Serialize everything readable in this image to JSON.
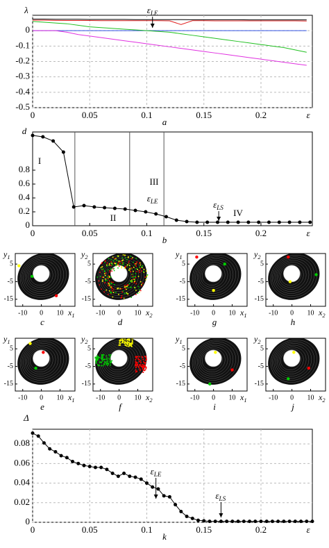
{
  "chart_data": [
    {
      "type": "line",
      "letter": "a",
      "ylabel": "λ",
      "xlabel": "ε",
      "x": [
        0,
        0.01,
        0.02,
        0.03,
        0.04,
        0.05,
        0.06,
        0.07,
        0.08,
        0.09,
        0.1,
        0.11,
        0.12,
        0.13,
        0.14,
        0.15,
        0.16,
        0.17,
        0.18,
        0.19,
        0.2,
        0.21,
        0.22,
        0.23,
        0.24
      ],
      "series": [
        {
          "color": "#000000",
          "values": [
            0.075,
            0.075,
            0.074,
            0.074,
            0.074,
            0.073,
            0.073,
            0.073,
            0.073,
            0.072,
            0.072,
            0.072,
            0.072,
            0.072,
            0.071,
            0.071,
            0.071,
            0.071,
            0.071,
            0.07,
            0.07,
            0.07,
            0.07,
            0.07,
            0.07
          ]
        },
        {
          "color": "#e02020",
          "values": [
            0.068,
            0.068,
            0.067,
            0.066,
            0.066,
            0.066,
            0.065,
            0.065,
            0.065,
            0.065,
            0.065,
            0.065,
            0.064,
            0.04,
            0.065,
            0.065,
            0.064,
            0.064,
            0.064,
            0.064,
            0.064,
            0.064,
            0.064,
            0.064,
            0.063
          ]
        },
        {
          "color": "#3050e0",
          "values": [
            0,
            0,
            0,
            0,
            0,
            0,
            0,
            0,
            0,
            0,
            0,
            0,
            0,
            0,
            0,
            0,
            0,
            0,
            0,
            0,
            0,
            0,
            0,
            0,
            0
          ]
        },
        {
          "color": "#20c020",
          "values": [
            0.06,
            0.055,
            0.05,
            0.045,
            0.035,
            0.025,
            0.02,
            0.015,
            0.01,
            0.005,
            0,
            -0.005,
            -0.01,
            -0.02,
            -0.03,
            -0.04,
            -0.05,
            -0.06,
            -0.07,
            -0.08,
            -0.09,
            -0.1,
            -0.11,
            -0.125,
            -0.14
          ]
        },
        {
          "color": "#e030e0",
          "values": [
            0,
            0,
            0,
            -0.01,
            -0.025,
            -0.035,
            -0.045,
            -0.055,
            -0.065,
            -0.075,
            -0.085,
            -0.095,
            -0.105,
            -0.115,
            -0.125,
            -0.135,
            -0.145,
            -0.155,
            -0.165,
            -0.175,
            -0.185,
            -0.195,
            -0.205,
            -0.215,
            -0.225
          ]
        }
      ],
      "xlim": [
        0,
        0.245
      ],
      "ylim": [
        -0.5,
        0.1
      ],
      "xticks": [
        0,
        0.05,
        0.1,
        0.15,
        0.2
      ],
      "yticks": [
        0,
        -0.1,
        -0.2,
        -0.3,
        -0.4,
        -0.5
      ],
      "grid": true,
      "markers": [
        {
          "label": {
            "base": "ε",
            "sub": "LE"
          },
          "x": 0.105
        }
      ]
    },
    {
      "type": "line",
      "letter": "b",
      "ylabel": "d",
      "xlabel": "ε",
      "point_markers": true,
      "color": "#000000",
      "x": [
        0,
        0.009,
        0.018,
        0.027,
        0.036,
        0.045,
        0.054,
        0.063,
        0.072,
        0.081,
        0.09,
        0.099,
        0.108,
        0.117,
        0.126,
        0.135,
        0.144,
        0.153,
        0.162,
        0.171,
        0.18,
        0.189,
        0.198,
        0.207,
        0.216,
        0.225,
        0.234,
        0.243
      ],
      "series": [
        {
          "color": "#000000",
          "values": [
            1.3,
            1.28,
            1.22,
            1.06,
            0.27,
            0.29,
            0.27,
            0.26,
            0.25,
            0.24,
            0.22,
            0.2,
            0.17,
            0.13,
            0.08,
            0.06,
            0.05,
            0.05,
            0.05,
            0.05,
            0.05,
            0.05,
            0.05,
            0.05,
            0.05,
            0.05,
            0.05,
            0.05
          ]
        }
      ],
      "xlim": [
        0,
        0.245
      ],
      "ylim": [
        0,
        1.35
      ],
      "xticks": [
        0,
        0.05,
        0.1,
        0.15,
        0.2
      ],
      "yticks": [
        0,
        0.2,
        0.4,
        0.6,
        0.8
      ],
      "grid": false,
      "vlines": [
        0.037,
        0.085,
        0.115
      ],
      "region_labels": [
        "I",
        "II",
        "III",
        "IV"
      ],
      "markers": [
        {
          "label": {
            "base": "ε",
            "sub": "LE"
          },
          "x": 0.105
        },
        {
          "label": {
            "base": "ε",
            "sub": "LS"
          },
          "x": 0.163
        }
      ]
    },
    {
      "type": "line",
      "letter": "k",
      "ylabel": "Δ",
      "xlabel": "ε",
      "point_markers": true,
      "x": [
        0,
        0.005,
        0.01,
        0.015,
        0.02,
        0.025,
        0.03,
        0.035,
        0.04,
        0.045,
        0.05,
        0.055,
        0.06,
        0.065,
        0.07,
        0.075,
        0.08,
        0.085,
        0.09,
        0.095,
        0.1,
        0.105,
        0.11,
        0.115,
        0.12,
        0.125,
        0.13,
        0.135,
        0.14,
        0.145,
        0.15,
        0.155,
        0.16,
        0.165,
        0.17,
        0.175,
        0.18,
        0.185,
        0.19,
        0.195,
        0.2,
        0.205,
        0.21,
        0.215,
        0.22,
        0.225,
        0.23,
        0.235,
        0.24,
        0.245
      ],
      "series": [
        {
          "color": "#000000",
          "values": [
            0.091,
            0.088,
            0.081,
            0.075,
            0.072,
            0.068,
            0.066,
            0.062,
            0.06,
            0.058,
            0.057,
            0.056,
            0.056,
            0.054,
            0.05,
            0.047,
            0.05,
            0.047,
            0.046,
            0.044,
            0.04,
            0.036,
            0.034,
            0.027,
            0.026,
            0.018,
            0.011,
            0.006,
            0.004,
            0.002,
            0.0015,
            0.001,
            0.001,
            0.001,
            0.001,
            0.001,
            0.001,
            0.001,
            0.001,
            0.001,
            0.001,
            0.001,
            0.001,
            0.001,
            0.001,
            0.001,
            0.001,
            0.001,
            0.001,
            0.001
          ]
        }
      ],
      "xlim": [
        0,
        0.245
      ],
      "ylim": [
        0,
        0.095
      ],
      "xticks": [
        0,
        0.05,
        0.1,
        0.15,
        0.2
      ],
      "yticks": [
        0,
        0.02,
        0.04,
        0.06,
        0.08
      ],
      "grid": true,
      "markers": [
        {
          "label": {
            "base": "ε",
            "sub": "LE"
          },
          "x": 0.108
        },
        {
          "label": {
            "base": "ε",
            "sub": "LS"
          },
          "x": 0.165
        }
      ]
    }
  ],
  "attractors": [
    {
      "letter": "c",
      "xlabel": {
        "base": "x",
        "sub": "1"
      },
      "ylabel": {
        "base": "y",
        "sub": "1"
      },
      "xlim": [
        -14,
        18
      ],
      "ylim": [
        -19,
        11
      ],
      "xticks": [
        -10,
        0,
        10
      ],
      "yticks": [
        5,
        -5,
        -15
      ]
    },
    {
      "letter": "d",
      "xlabel": {
        "base": "x",
        "sub": "2"
      },
      "ylabel": {
        "base": "y",
        "sub": "2"
      },
      "xlim": [
        -14,
        18
      ],
      "ylim": [
        -19,
        11
      ],
      "xticks": [
        -10,
        0,
        10
      ],
      "yticks": [
        5,
        -5,
        -15
      ]
    },
    {
      "letter": "g",
      "xlabel": {
        "base": "x",
        "sub": "1"
      },
      "ylabel": {
        "base": "y",
        "sub": "1"
      },
      "xlim": [
        -14,
        18
      ],
      "ylim": [
        -19,
        11
      ],
      "xticks": [
        -10,
        0,
        10
      ],
      "yticks": [
        5,
        -5,
        -15
      ]
    },
    {
      "letter": "h",
      "xlabel": {
        "base": "x",
        "sub": "2"
      },
      "ylabel": {
        "base": "y",
        "sub": "2"
      },
      "xlim": [
        -14,
        18
      ],
      "ylim": [
        -19,
        11
      ],
      "xticks": [
        -10,
        0,
        10
      ],
      "yticks": [
        5,
        -5,
        -15
      ]
    },
    {
      "letter": "e",
      "xlabel": {
        "base": "x",
        "sub": "1"
      },
      "ylabel": {
        "base": "y",
        "sub": "1"
      },
      "xlim": [
        -14,
        18
      ],
      "ylim": [
        -19,
        11
      ],
      "xticks": [
        -10,
        0,
        10
      ],
      "yticks": [
        5,
        -5,
        -15
      ]
    },
    {
      "letter": "f",
      "xlabel": {
        "base": "x",
        "sub": "2"
      },
      "ylabel": {
        "base": "y",
        "sub": "2"
      },
      "xlim": [
        -14,
        18
      ],
      "ylim": [
        -19,
        11
      ],
      "xticks": [
        -10,
        0,
        10
      ],
      "yticks": [
        5,
        -5,
        -15
      ]
    },
    {
      "letter": "i",
      "xlabel": {
        "base": "x",
        "sub": "1"
      },
      "ylabel": {
        "base": "y",
        "sub": "1"
      },
      "xlim": [
        -14,
        18
      ],
      "ylim": [
        -19,
        11
      ],
      "xticks": [
        -10,
        0,
        10
      ],
      "yticks": [
        5,
        -5,
        -15
      ]
    },
    {
      "letter": "j",
      "xlabel": {
        "base": "x",
        "sub": "2"
      },
      "ylabel": {
        "base": "y",
        "sub": "2"
      },
      "xlim": [
        -14,
        18
      ],
      "ylim": [
        -19,
        11
      ],
      "xticks": [
        -10,
        0,
        10
      ],
      "yticks": [
        5,
        -5,
        -15
      ]
    }
  ]
}
